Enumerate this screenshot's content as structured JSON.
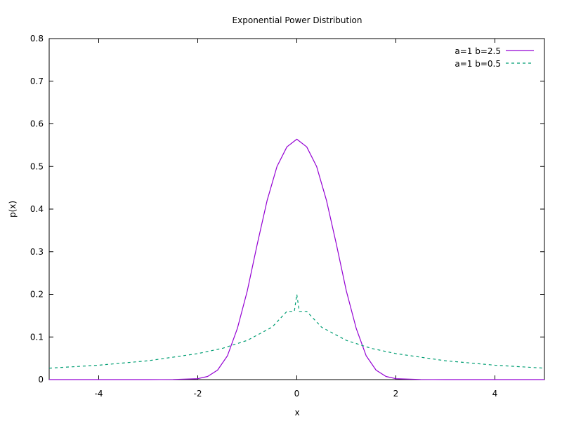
{
  "chart_data": {
    "type": "line",
    "title": "Exponential Power Distribution",
    "xlabel": "x",
    "ylabel": "p(x)",
    "xlim": [
      -5,
      5
    ],
    "ylim": [
      0,
      0.8
    ],
    "xticks": [
      "-4",
      "-2",
      "0",
      "2",
      "4"
    ],
    "xtick_values": [
      -4,
      -2,
      0,
      2,
      4
    ],
    "yticks": [
      "0",
      "0.1",
      "0.2",
      "0.3",
      "0.4",
      "0.5",
      "0.6",
      "0.7",
      "0.8"
    ],
    "ytick_values": [
      0,
      0.1,
      0.2,
      0.3,
      0.4,
      0.5,
      0.6,
      0.7,
      0.8
    ],
    "grid": false,
    "legend_position": "top-right",
    "series": [
      {
        "name": "a=1 b=2.5",
        "color": "#9400d3",
        "dash": "solid",
        "x": [
          -5,
          -4,
          -3,
          -2.5,
          -2,
          -1.8,
          -1.6,
          -1.4,
          -1.2,
          -1.0,
          -0.8,
          -0.6,
          -0.4,
          -0.2,
          0,
          0.2,
          0.4,
          0.6,
          0.8,
          1.0,
          1.2,
          1.4,
          1.6,
          1.8,
          2,
          2.5,
          3,
          4,
          5
        ],
        "y": [
          0,
          0,
          0,
          0.0003,
          0.0021,
          0.0074,
          0.0222,
          0.056,
          0.12,
          0.208,
          0.317,
          0.42,
          0.5,
          0.546,
          0.564,
          0.546,
          0.5,
          0.42,
          0.317,
          0.208,
          0.12,
          0.056,
          0.0222,
          0.0074,
          0.0021,
          0.0003,
          0,
          0,
          0
        ]
      },
      {
        "name": "a=1 b=0.5",
        "color": "#009e73",
        "dash": "dashed",
        "x": [
          -5,
          -4,
          -3,
          -2,
          -1.5,
          -1,
          -0.5,
          -0.2,
          -0.05,
          0,
          0.05,
          0.2,
          0.5,
          1,
          1.5,
          2,
          3,
          4,
          5
        ],
        "y": [
          0.0268,
          0.0338,
          0.0442,
          0.061,
          0.0734,
          0.092,
          0.123,
          0.16,
          0.16,
          0.2,
          0.16,
          0.16,
          0.123,
          0.092,
          0.0734,
          0.061,
          0.0442,
          0.0338,
          0.0268
        ]
      }
    ]
  }
}
